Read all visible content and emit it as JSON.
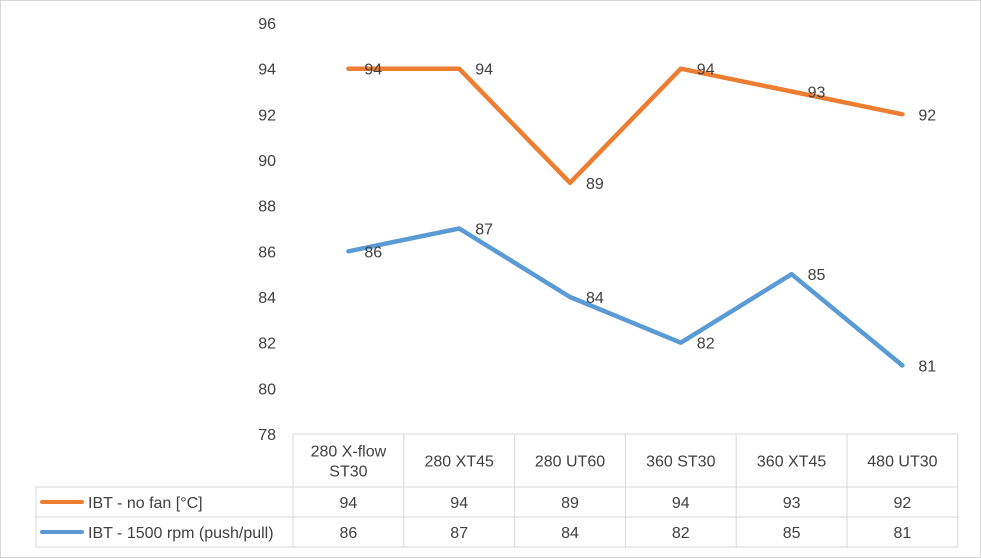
{
  "chart_data": {
    "type": "line",
    "categories": [
      "280 X-flow ST30",
      "280 XT45",
      "280 UT60",
      "360 ST30",
      "360 XT45",
      "480 UT30"
    ],
    "category_lines": [
      [
        "280 X-flow",
        "ST30"
      ],
      [
        "280 XT45"
      ],
      [
        "280 UT60"
      ],
      [
        "360 ST30"
      ],
      [
        "360 XT45"
      ],
      [
        "480 UT30"
      ]
    ],
    "ylim": [
      78,
      96
    ],
    "yticks": [
      "78",
      "80",
      "82",
      "84",
      "86",
      "88",
      "90",
      "92",
      "94",
      "96"
    ],
    "grid": false,
    "legend": "data-table",
    "series": [
      {
        "name": "IBT - no fan [°C]",
        "color": "#ED7D31",
        "values": [
          94,
          94,
          89,
          94,
          93,
          92
        ]
      },
      {
        "name": "IBT - 1500 rpm (push/pull)",
        "color": "#5B9BD5",
        "values": [
          86,
          87,
          84,
          82,
          85,
          81
        ]
      }
    ]
  }
}
